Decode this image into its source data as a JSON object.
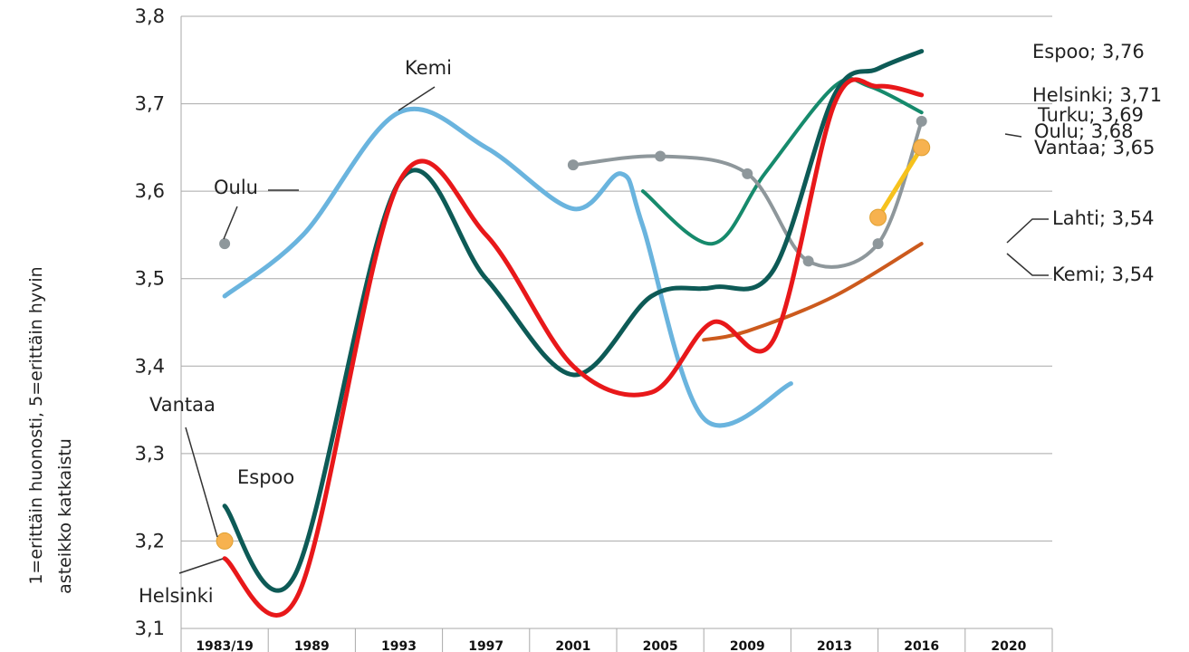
{
  "chart_data": {
    "type": "line",
    "ylabel_lines": [
      "1=erittäin huonosti, 5=erittäin hyvin",
      "asteikko katkaistu"
    ],
    "ylim": [
      3.1,
      3.8
    ],
    "yticks": [
      "3,1",
      "3,2",
      "3,3",
      "3,4",
      "3,5",
      "3,6",
      "3,7",
      "3,8"
    ],
    "x_categories": [
      "1983/19",
      "1989",
      "1993",
      "1997",
      "2001",
      "2005",
      "2009",
      "2013",
      "2016",
      "2020"
    ],
    "grid": true,
    "series": [
      {
        "name": "Kemi",
        "color": "#6ab4de",
        "width": 5,
        "markers": false,
        "points": [
          [
            0,
            3.48
          ],
          [
            0.9,
            3.55
          ],
          [
            2.0,
            3.69
          ],
          [
            3.0,
            3.65
          ],
          [
            4.0,
            3.58
          ],
          [
            4.55,
            3.62
          ],
          [
            4.8,
            3.56
          ],
          [
            5.5,
            3.34
          ],
          [
            6.5,
            3.38
          ]
        ]
      },
      {
        "name": "Espoo",
        "color": "#0d5a56",
        "width": 5,
        "markers": false,
        "points": [
          [
            0,
            3.24
          ],
          [
            0.8,
            3.16
          ],
          [
            2.0,
            3.61
          ],
          [
            3.0,
            3.5
          ],
          [
            4.0,
            3.39
          ],
          [
            4.9,
            3.48
          ],
          [
            5.6,
            3.49
          ],
          [
            6.3,
            3.51
          ],
          [
            7.0,
            3.71
          ],
          [
            7.5,
            3.74
          ],
          [
            8.0,
            3.76
          ]
        ]
      },
      {
        "name": "Helsinki",
        "color": "#e8181a",
        "width": 5,
        "markers": false,
        "points": [
          [
            0,
            3.18
          ],
          [
            0.85,
            3.14
          ],
          [
            2.0,
            3.61
          ],
          [
            3.0,
            3.55
          ],
          [
            4.0,
            3.4
          ],
          [
            4.9,
            3.37
          ],
          [
            5.6,
            3.45
          ],
          [
            6.3,
            3.43
          ],
          [
            7.0,
            3.7
          ],
          [
            7.5,
            3.72
          ],
          [
            8.0,
            3.71
          ]
        ]
      },
      {
        "name": "Turku",
        "color": "#168a6c",
        "width": 4,
        "markers": false,
        "points": [
          [
            4.8,
            3.6
          ],
          [
            5.6,
            3.54
          ],
          [
            6.2,
            3.62
          ],
          [
            7.0,
            3.72
          ],
          [
            7.4,
            3.72
          ],
          [
            8.0,
            3.69
          ]
        ]
      },
      {
        "name": "Oulu",
        "color": "#8e979b",
        "width": 4,
        "markers": true,
        "points": [
          [
            4.0,
            3.63
          ],
          [
            5.0,
            3.64
          ],
          [
            6.0,
            3.62
          ],
          [
            6.7,
            3.52
          ],
          [
            7.5,
            3.54
          ],
          [
            8.0,
            3.68
          ]
        ],
        "extra_points": [
          [
            0,
            3.54
          ]
        ]
      },
      {
        "name": "Vantaa",
        "color": "#f6c21d",
        "width": 5,
        "markers": true,
        "marker_fill": "#f7b24f",
        "points": [
          [
            7.5,
            3.57
          ],
          [
            8.0,
            3.65
          ]
        ],
        "extra_points": [
          [
            0,
            3.2
          ]
        ]
      },
      {
        "name": "Lahti",
        "color": "#cc5a1d",
        "width": 4,
        "markers": false,
        "points": [
          [
            5.5,
            3.43
          ],
          [
            6.0,
            3.44
          ],
          [
            7.0,
            3.48
          ],
          [
            8.0,
            3.54
          ]
        ]
      }
    ],
    "annotations": [
      {
        "text": "Espoo; 3,76"
      },
      {
        "text": "Helsinki; 3,71"
      },
      {
        "text": "Turku; 3,69"
      },
      {
        "text": "Oulu; 3,68"
      },
      {
        "text": "Vantaa; 3,65"
      },
      {
        "text": "Lahti; 3,54"
      },
      {
        "text": "Kemi; 3,54"
      },
      {
        "text": "Kemi"
      },
      {
        "text": "Oulu"
      },
      {
        "text": "Vantaa"
      },
      {
        "text": "Espoo"
      },
      {
        "text": "Helsinki"
      }
    ]
  }
}
